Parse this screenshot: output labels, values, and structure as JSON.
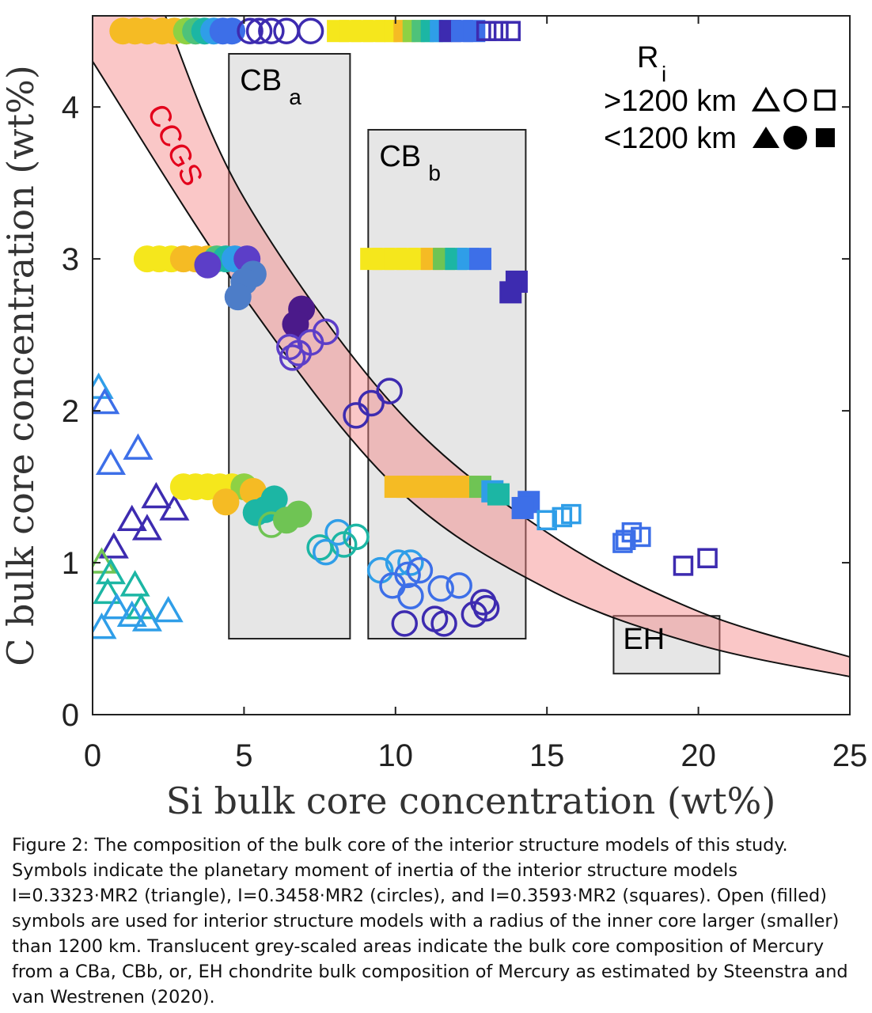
{
  "chart_data": {
    "type": "scatter",
    "xlabel": "Si bulk core concentration (wt%)",
    "ylabel": "C bulk core concentration (wt%)",
    "xlim": [
      0,
      25
    ],
    "ylim": [
      0,
      4.6
    ],
    "xticks": [
      "0",
      "5",
      "10",
      "15",
      "20",
      "25"
    ],
    "yticks": [
      "0",
      "1",
      "2",
      "3",
      "4"
    ],
    "grid": false,
    "legend": {
      "title": "R",
      "title_sub": "i",
      "rows": [
        {
          "label": ">1200 km",
          "fill": "open"
        },
        {
          "label": "<1200 km",
          "fill": "filled"
        }
      ]
    },
    "regions": [
      {
        "label": "CB",
        "sub": "a",
        "x": [
          4.5,
          8.5
        ],
        "y": [
          0.5,
          4.35
        ]
      },
      {
        "label": "CB",
        "sub": "b",
        "x": [
          9.1,
          14.3
        ],
        "y": [
          0.5,
          3.85
        ]
      },
      {
        "label": "EH",
        "sub": "",
        "x": [
          17.2,
          20.7
        ],
        "y": [
          0.27,
          0.65
        ]
      }
    ],
    "band": {
      "label": "CCGS",
      "upper": [
        [
          2.4,
          4.6
        ],
        [
          5,
          3.4
        ],
        [
          10,
          2.02
        ],
        [
          15,
          1.2
        ],
        [
          20,
          0.68
        ],
        [
          25,
          0.38
        ]
      ],
      "lower": [
        [
          0,
          4.3
        ],
        [
          5,
          2.75
        ],
        [
          10,
          1.5
        ],
        [
          15,
          0.83
        ],
        [
          20,
          0.46
        ],
        [
          25,
          0.25
        ]
      ]
    },
    "series": [
      {
        "marker": "triangle",
        "fill": "open",
        "points": [
          {
            "x": 0.2,
            "y": 2.15,
            "c": "#2f9ee8"
          },
          {
            "x": 0.4,
            "y": 2.05,
            "c": "#3d6fe8"
          },
          {
            "x": 0.6,
            "y": 1.65,
            "c": "#3d6fe8"
          },
          {
            "x": 1.5,
            "y": 1.75,
            "c": "#3d6fe8"
          },
          {
            "x": 2.1,
            "y": 1.43,
            "c": "#3d2bb0"
          },
          {
            "x": 2.7,
            "y": 1.35,
            "c": "#3d2bb0"
          },
          {
            "x": 1.3,
            "y": 1.28,
            "c": "#3d2bb0"
          },
          {
            "x": 1.8,
            "y": 1.22,
            "c": "#3d2bb0"
          },
          {
            "x": 0.7,
            "y": 1.1,
            "c": "#3d2bb0"
          },
          {
            "x": 0.3,
            "y": 1.0,
            "c": "#6fc454"
          },
          {
            "x": 0.6,
            "y": 0.93,
            "c": "#1cb6a4"
          },
          {
            "x": 0.5,
            "y": 0.8,
            "c": "#1cb6a4"
          },
          {
            "x": 1.4,
            "y": 0.85,
            "c": "#1cb6a4"
          },
          {
            "x": 0.8,
            "y": 0.7,
            "c": "#2f9ee8"
          },
          {
            "x": 1.6,
            "y": 0.7,
            "c": "#1cb6a4"
          },
          {
            "x": 2.5,
            "y": 0.68,
            "c": "#2f9ee8"
          },
          {
            "x": 1.3,
            "y": 0.65,
            "c": "#2f9ee8"
          },
          {
            "x": 1.8,
            "y": 0.62,
            "c": "#2f9ee8"
          },
          {
            "x": 0.3,
            "y": 0.57,
            "c": "#2f9ee8"
          }
        ]
      },
      {
        "marker": "circle",
        "fill": "filled",
        "points": [
          {
            "x": 1.0,
            "y": 4.5,
            "c": "#f5bb24"
          },
          {
            "x": 1.4,
            "y": 4.5,
            "c": "#f5bb24"
          },
          {
            "x": 1.8,
            "y": 4.5,
            "c": "#f5bb24"
          },
          {
            "x": 2.3,
            "y": 4.5,
            "c": "#f5bb24"
          },
          {
            "x": 2.7,
            "y": 4.5,
            "c": "#f5bb24"
          },
          {
            "x": 3.1,
            "y": 4.5,
            "c": "#8ed144"
          },
          {
            "x": 3.4,
            "y": 4.5,
            "c": "#4ec27a"
          },
          {
            "x": 3.7,
            "y": 4.5,
            "c": "#1cb6a4"
          },
          {
            "x": 4.0,
            "y": 4.5,
            "c": "#2f9ee8"
          },
          {
            "x": 4.3,
            "y": 4.5,
            "c": "#3d6fe8"
          },
          {
            "x": 4.6,
            "y": 4.5,
            "c": "#3d6fe8"
          },
          {
            "x": 1.8,
            "y": 3.0,
            "c": "#f5e71c"
          },
          {
            "x": 2.2,
            "y": 3.0,
            "c": "#f5e71c"
          },
          {
            "x": 2.6,
            "y": 3.0,
            "c": "#f5e71c"
          },
          {
            "x": 3.0,
            "y": 3.0,
            "c": "#f5bb24"
          },
          {
            "x": 3.4,
            "y": 3.0,
            "c": "#f5bb24"
          },
          {
            "x": 3.8,
            "y": 3.0,
            "c": "#f5bb24"
          },
          {
            "x": 4.1,
            "y": 3.0,
            "c": "#4ec27a"
          },
          {
            "x": 4.4,
            "y": 3.0,
            "c": "#1cb6a4"
          },
          {
            "x": 4.7,
            "y": 3.0,
            "c": "#2f9ee8"
          },
          {
            "x": 5.1,
            "y": 3.0,
            "c": "#5c3ec8"
          },
          {
            "x": 3.8,
            "y": 2.96,
            "c": "#5c3ec8"
          },
          {
            "x": 5.3,
            "y": 2.9,
            "c": "#4d7dc8"
          },
          {
            "x": 5.0,
            "y": 2.85,
            "c": "#4d7dc8"
          },
          {
            "x": 4.8,
            "y": 2.75,
            "c": "#4d7dc8"
          },
          {
            "x": 6.9,
            "y": 2.67,
            "c": "#4b1a8a"
          },
          {
            "x": 6.7,
            "y": 2.57,
            "c": "#4b1a8a"
          },
          {
            "x": 3.0,
            "y": 1.5,
            "c": "#f5e71c"
          },
          {
            "x": 3.4,
            "y": 1.5,
            "c": "#f5e71c"
          },
          {
            "x": 3.8,
            "y": 1.5,
            "c": "#f5e71c"
          },
          {
            "x": 4.2,
            "y": 1.5,
            "c": "#f5e71c"
          },
          {
            "x": 4.6,
            "y": 1.5,
            "c": "#f5e71c"
          },
          {
            "x": 5.0,
            "y": 1.5,
            "c": "#8ed144"
          },
          {
            "x": 5.3,
            "y": 1.47,
            "c": "#f5bb24"
          },
          {
            "x": 4.4,
            "y": 1.4,
            "c": "#f5bb24"
          },
          {
            "x": 6.0,
            "y": 1.42,
            "c": "#1cb6a4"
          },
          {
            "x": 5.7,
            "y": 1.35,
            "c": "#1cb6a4"
          },
          {
            "x": 5.4,
            "y": 1.33,
            "c": "#1cb6a4"
          },
          {
            "x": 6.8,
            "y": 1.32,
            "c": "#6fc454"
          },
          {
            "x": 6.4,
            "y": 1.28,
            "c": "#6fc454"
          }
        ]
      },
      {
        "marker": "circle",
        "fill": "open",
        "points": [
          {
            "x": 5.2,
            "y": 4.5,
            "c": "#3d2bb0"
          },
          {
            "x": 5.5,
            "y": 4.5,
            "c": "#3d2bb0"
          },
          {
            "x": 5.9,
            "y": 4.5,
            "c": "#3d2bb0"
          },
          {
            "x": 6.4,
            "y": 4.5,
            "c": "#3d2bb0"
          },
          {
            "x": 7.2,
            "y": 4.5,
            "c": "#3d2bb0"
          },
          {
            "x": 7.7,
            "y": 2.52,
            "c": "#5c3ec8"
          },
          {
            "x": 7.2,
            "y": 2.45,
            "c": "#5c3ec8"
          },
          {
            "x": 6.5,
            "y": 2.42,
            "c": "#5c3ec8"
          },
          {
            "x": 6.6,
            "y": 2.35,
            "c": "#5c3ec8"
          },
          {
            "x": 6.8,
            "y": 2.38,
            "c": "#5c3ec8"
          },
          {
            "x": 9.8,
            "y": 2.13,
            "c": "#3d2bb0"
          },
          {
            "x": 9.2,
            "y": 2.05,
            "c": "#3d2bb0"
          },
          {
            "x": 8.7,
            "y": 1.97,
            "c": "#3d2bb0"
          },
          {
            "x": 5.9,
            "y": 1.25,
            "c": "#6fc454"
          },
          {
            "x": 8.1,
            "y": 1.2,
            "c": "#2f9ee8"
          },
          {
            "x": 8.7,
            "y": 1.17,
            "c": "#1cb6a4"
          },
          {
            "x": 8.3,
            "y": 1.12,
            "c": "#1cb6a4"
          },
          {
            "x": 7.5,
            "y": 1.1,
            "c": "#1cb6a4"
          },
          {
            "x": 7.7,
            "y": 1.07,
            "c": "#2f9ee8"
          },
          {
            "x": 9.5,
            "y": 0.95,
            "c": "#2f9ee8"
          },
          {
            "x": 10.1,
            "y": 1.0,
            "c": "#2f9ee8"
          },
          {
            "x": 10.5,
            "y": 1.0,
            "c": "#2f9ee8"
          },
          {
            "x": 10.8,
            "y": 0.95,
            "c": "#3d6fe8"
          },
          {
            "x": 10.4,
            "y": 0.92,
            "c": "#3d6fe8"
          },
          {
            "x": 9.9,
            "y": 0.85,
            "c": "#3d6fe8"
          },
          {
            "x": 11.5,
            "y": 0.83,
            "c": "#3d6fe8"
          },
          {
            "x": 12.1,
            "y": 0.85,
            "c": "#3d6fe8"
          },
          {
            "x": 10.5,
            "y": 0.78,
            "c": "#3d6fe8"
          },
          {
            "x": 12.9,
            "y": 0.74,
            "c": "#3d2bb0"
          },
          {
            "x": 12.6,
            "y": 0.66,
            "c": "#3d2bb0"
          },
          {
            "x": 13.0,
            "y": 0.7,
            "c": "#3d2bb0"
          },
          {
            "x": 11.3,
            "y": 0.63,
            "c": "#3d2bb0"
          },
          {
            "x": 11.6,
            "y": 0.6,
            "c": "#3d2bb0"
          },
          {
            "x": 10.3,
            "y": 0.6,
            "c": "#3d2bb0"
          }
        ]
      },
      {
        "marker": "square",
        "fill": "filled",
        "points": [
          {
            "x": 8.1,
            "y": 4.5,
            "c": "#f5e71c"
          },
          {
            "x": 8.5,
            "y": 4.5,
            "c": "#f5e71c"
          },
          {
            "x": 8.9,
            "y": 4.5,
            "c": "#f5e71c"
          },
          {
            "x": 9.3,
            "y": 4.5,
            "c": "#f5e71c"
          },
          {
            "x": 9.7,
            "y": 4.5,
            "c": "#f5e71c"
          },
          {
            "x": 10.0,
            "y": 4.5,
            "c": "#f5e71c"
          },
          {
            "x": 10.3,
            "y": 4.5,
            "c": "#f5bb24"
          },
          {
            "x": 10.6,
            "y": 4.5,
            "c": "#8ed144"
          },
          {
            "x": 10.9,
            "y": 4.5,
            "c": "#4ec27a"
          },
          {
            "x": 11.2,
            "y": 4.5,
            "c": "#1cb6a4"
          },
          {
            "x": 11.5,
            "y": 4.5,
            "c": "#2f9ee8"
          },
          {
            "x": 11.8,
            "y": 4.5,
            "c": "#3d2bb0"
          },
          {
            "x": 12.2,
            "y": 4.5,
            "c": "#3d6fe8"
          },
          {
            "x": 12.6,
            "y": 4.5,
            "c": "#3d6fe8"
          },
          {
            "x": 9.2,
            "y": 3.0,
            "c": "#f5e71c"
          },
          {
            "x": 9.6,
            "y": 3.0,
            "c": "#f5e71c"
          },
          {
            "x": 10.0,
            "y": 3.0,
            "c": "#f5e71c"
          },
          {
            "x": 10.4,
            "y": 3.0,
            "c": "#f5e71c"
          },
          {
            "x": 10.8,
            "y": 3.0,
            "c": "#f5e71c"
          },
          {
            "x": 11.2,
            "y": 3.0,
            "c": "#f5bb24"
          },
          {
            "x": 11.6,
            "y": 3.0,
            "c": "#6fc454"
          },
          {
            "x": 12.0,
            "y": 3.0,
            "c": "#1cb6a4"
          },
          {
            "x": 12.4,
            "y": 3.0,
            "c": "#2f9ee8"
          },
          {
            "x": 12.8,
            "y": 3.0,
            "c": "#3d6fe8"
          },
          {
            "x": 14.0,
            "y": 2.85,
            "c": "#3d2bb0"
          },
          {
            "x": 13.8,
            "y": 2.78,
            "c": "#3d2bb0"
          },
          {
            "x": 10.0,
            "y": 1.5,
            "c": "#f5bb24"
          },
          {
            "x": 10.4,
            "y": 1.5,
            "c": "#f5bb24"
          },
          {
            "x": 10.8,
            "y": 1.5,
            "c": "#f5bb24"
          },
          {
            "x": 11.2,
            "y": 1.5,
            "c": "#f5bb24"
          },
          {
            "x": 11.6,
            "y": 1.5,
            "c": "#f5bb24"
          },
          {
            "x": 12.0,
            "y": 1.5,
            "c": "#f5bb24"
          },
          {
            "x": 12.4,
            "y": 1.5,
            "c": "#f5bb24"
          },
          {
            "x": 12.8,
            "y": 1.5,
            "c": "#6fc454"
          },
          {
            "x": 13.2,
            "y": 1.47,
            "c": "#2f9ee8"
          },
          {
            "x": 13.4,
            "y": 1.45,
            "c": "#1cb6a4"
          },
          {
            "x": 14.4,
            "y": 1.4,
            "c": "#3d6fe8"
          },
          {
            "x": 14.2,
            "y": 1.36,
            "c": "#3d6fe8"
          }
        ]
      },
      {
        "marker": "square",
        "fill": "open",
        "points": [
          {
            "x": 13.0,
            "y": 4.5,
            "c": "#3d2bb0"
          },
          {
            "x": 13.4,
            "y": 4.5,
            "c": "#3d2bb0"
          },
          {
            "x": 13.8,
            "y": 4.5,
            "c": "#3d2bb0"
          },
          {
            "x": 15.0,
            "y": 1.28,
            "c": "#2f9ee8"
          },
          {
            "x": 15.5,
            "y": 1.3,
            "c": "#2f9ee8"
          },
          {
            "x": 15.8,
            "y": 1.32,
            "c": "#2f9ee8"
          },
          {
            "x": 17.5,
            "y": 1.13,
            "c": "#3d6fe8"
          },
          {
            "x": 17.8,
            "y": 1.2,
            "c": "#3d6fe8"
          },
          {
            "x": 18.1,
            "y": 1.17,
            "c": "#3d6fe8"
          },
          {
            "x": 17.6,
            "y": 1.15,
            "c": "#3d6fe8"
          },
          {
            "x": 19.5,
            "y": 0.98,
            "c": "#3d2bb0"
          },
          {
            "x": 20.3,
            "y": 1.03,
            "c": "#3d2bb0"
          }
        ]
      }
    ]
  },
  "caption": "Figure 2: The composition of the bulk core of the interior structure models of this study. Symbols indicate the planetary moment of inertia of the interior structure models I=0.3323·MR2 (triangle), I=0.3458·MR2 (circles), and I=0.3593·MR2 (squares). Open (filled) symbols are used for interior structure models with a radius of the inner core larger (smaller) than 1200 km. Translucent grey-scaled areas indicate the bulk core composition of Mercury from a CBa, CBb, or, EH chondrite bulk composition of Mercury as estimated by Steenstra and van Westrenen (2020)."
}
